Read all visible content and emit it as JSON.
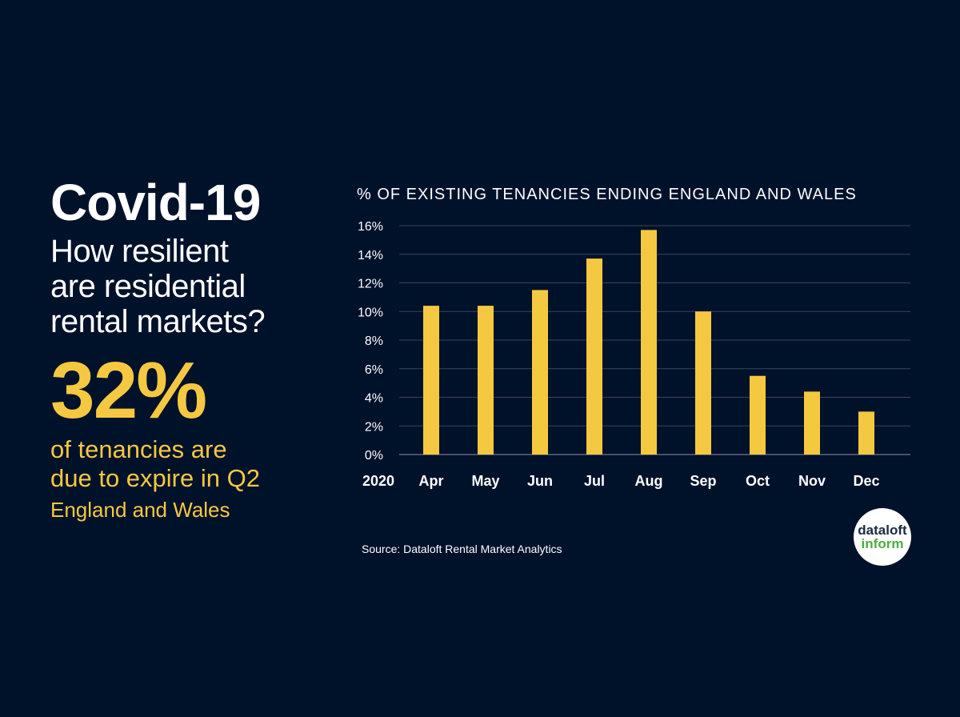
{
  "headline": {
    "title": "Covid-19",
    "question_lines": [
      "How resilient",
      "are residential",
      "rental markets?"
    ],
    "stat_value": "32%",
    "stat_desc_lines": [
      "of tenancies are",
      "due to expire in Q2"
    ],
    "stat_region": "England and Wales"
  },
  "source": "Source: Dataloft Rental Market Analytics",
  "logo": {
    "line1": "dataloft",
    "line2": "inform"
  },
  "colors": {
    "background": "#00112a",
    "bar": "#f5c842",
    "grid": "#3a4560",
    "text": "#ffffff"
  },
  "chart_data": {
    "type": "bar",
    "title": "% OF EXISTING TENANCIES ENDING ENGLAND AND WALES",
    "year_label": "2020",
    "categories": [
      "Apr",
      "May",
      "Jun",
      "Jul",
      "Aug",
      "Sep",
      "Oct",
      "Nov",
      "Dec"
    ],
    "values": [
      10.4,
      10.4,
      11.5,
      13.7,
      15.7,
      10.0,
      5.5,
      4.4,
      3.0
    ],
    "ylim": [
      0,
      16
    ],
    "yticks": [
      0,
      2,
      4,
      6,
      8,
      10,
      12,
      14,
      16
    ],
    "ytick_labels": [
      "0%",
      "2%",
      "4%",
      "6%",
      "8%",
      "10%",
      "12%",
      "14%",
      "16%"
    ],
    "grid": true,
    "xlabel": "",
    "ylabel": ""
  }
}
